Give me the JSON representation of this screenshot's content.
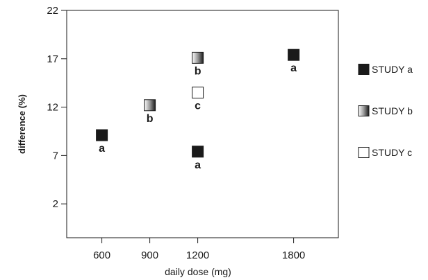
{
  "chart_data": {
    "type": "scatter",
    "title": "",
    "xlabel": "daily dose (mg)",
    "ylabel": "difference (%)",
    "xlim": [
      380,
      2080
    ],
    "ylim": [
      -1.5,
      22
    ],
    "x_ticks": [
      600,
      900,
      1200,
      1800
    ],
    "y_ticks": [
      2,
      7,
      12,
      17,
      22
    ],
    "grid": false,
    "legend_position": "right",
    "series": [
      {
        "name": "STUDY a",
        "fill": "solid",
        "color": "#1a1a1a",
        "points": [
          {
            "x": 600,
            "y": 9.1,
            "label": "a"
          },
          {
            "x": 1200,
            "y": 7.4,
            "label": "a"
          },
          {
            "x": 1800,
            "y": 17.4,
            "label": "a"
          }
        ]
      },
      {
        "name": "STUDY b",
        "fill": "gradient",
        "color": "#555555",
        "points": [
          {
            "x": 900,
            "y": 12.2,
            "label": "b"
          },
          {
            "x": 1200,
            "y": 17.1,
            "label": "b"
          }
        ]
      },
      {
        "name": "STUDY c",
        "fill": "open",
        "color": "#ffffff",
        "points": [
          {
            "x": 1200,
            "y": 13.5,
            "label": "c"
          }
        ]
      }
    ]
  }
}
